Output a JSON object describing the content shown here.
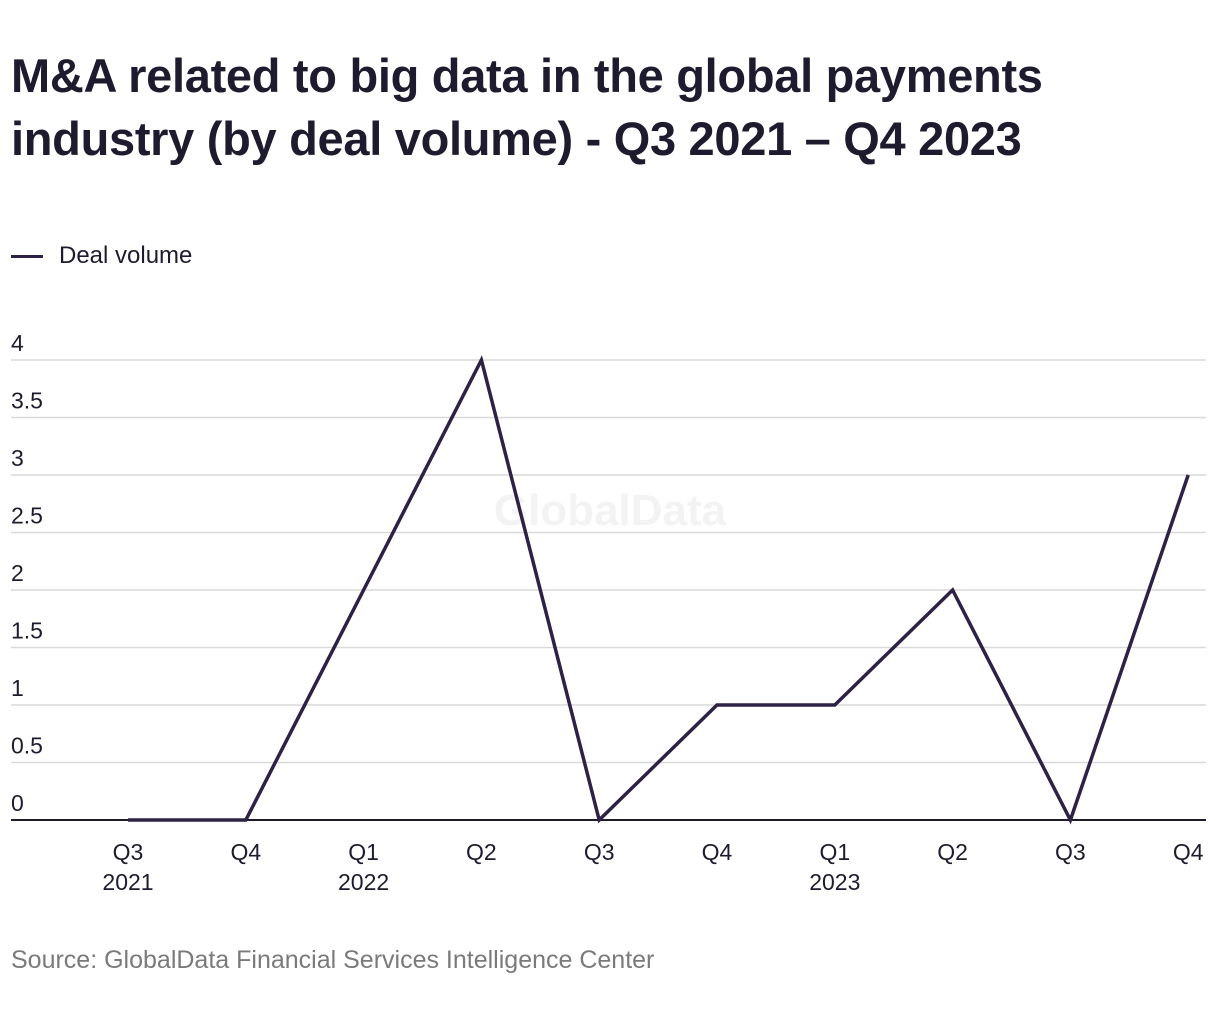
{
  "title": "M&A related to big data in the global payments industry (by deal volume) - Q3 2021 – Q4 2023",
  "source": "Source: GlobalData Financial Services Intelligence Center",
  "watermark": "GlobalData",
  "colors": {
    "line": "#2e2146",
    "grid": "#d9d9d9",
    "axis": "#1f1b2e",
    "text": "#1f1b2e",
    "source": "#7a7a7a"
  },
  "chart_data": {
    "type": "line",
    "categories": [
      "Q3 2021",
      "Q4 2021",
      "Q1 2022",
      "Q2 2022",
      "Q3 2022",
      "Q4 2022",
      "Q1 2023",
      "Q2 2023",
      "Q3 2023",
      "Q4 2023"
    ],
    "tick_labels": [
      [
        "Q3",
        "2021"
      ],
      [
        "Q4",
        ""
      ],
      [
        "Q1",
        "2022"
      ],
      [
        "Q2",
        ""
      ],
      [
        "Q3",
        ""
      ],
      [
        "Q4",
        ""
      ],
      [
        "Q1",
        "2023"
      ],
      [
        "Q2",
        ""
      ],
      [
        "Q3",
        ""
      ],
      [
        "Q4",
        ""
      ]
    ],
    "series": [
      {
        "name": "Deal volume",
        "values": [
          0,
          0,
          2,
          4,
          0,
          1,
          1,
          2,
          0,
          3
        ]
      }
    ],
    "ylim": [
      0,
      4
    ],
    "yticks": [
      "0",
      "0.5",
      "1",
      "1.5",
      "2",
      "2.5",
      "3",
      "3.5",
      "4"
    ],
    "xlabel": "",
    "ylabel": "",
    "grid": true,
    "legend": "top-left"
  }
}
